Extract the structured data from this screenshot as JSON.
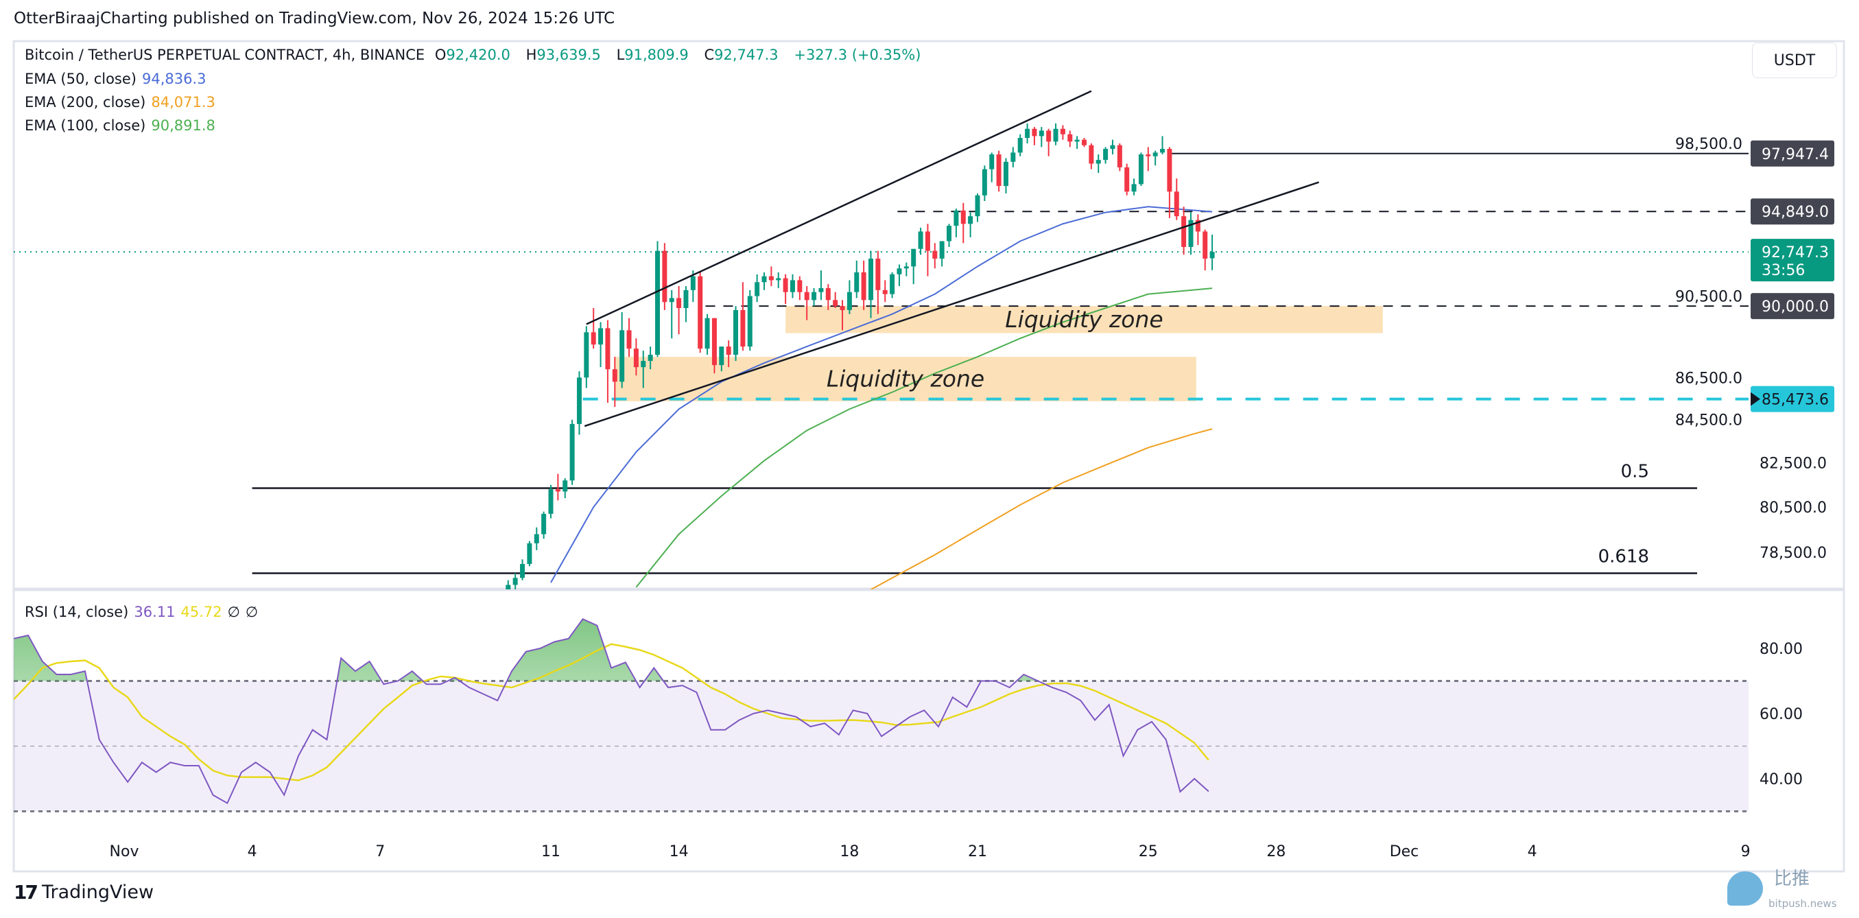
{
  "header": {
    "published": "OtterBiraajCharting published on TradingView.com, Nov 26, 2024 15:26 UTC"
  },
  "legend": {
    "symbol": "Bitcoin / TetherUS PERPETUAL CONTRACT, 4h, BINANCE",
    "o_label": "O",
    "o": "92,420.0",
    "h_label": "H",
    "h": "93,639.5",
    "l_label": "L",
    "l": "91,809.9",
    "c_label": "C",
    "c": "92,747.3",
    "change": "+327.3 (+0.35%)",
    "ema50_label": "EMA (50, close)",
    "ema50": "94,836.3",
    "ema200_label": "EMA (200, close)",
    "ema200": "84,071.3",
    "ema100_label": "EMA (100, close)",
    "ema100": "90,891.8",
    "rsi_label": "RSI (14, close)",
    "rsi": "36.11",
    "rsi_ma": "45.72",
    "rsi_extra1": "∅",
    "rsi_extra2": "∅"
  },
  "currency_button": "USDT",
  "colors": {
    "up": "#089981",
    "down": "#f23645",
    "ema50": "#4a6bd6",
    "ema100": "#4caf50",
    "ema200": "#f0a020",
    "rsi": "#7e57c2",
    "rsi_ma": "#e8d81a",
    "zone": "#fbd9a6",
    "cyan": "#26c6da"
  },
  "chart_data": [
    {
      "type": "candlestick",
      "interval": "4h",
      "scale": "log",
      "ylim": [
        76900,
        100600
      ],
      "y_ticks": [
        "98,500.0",
        "90,500.0",
        "86,500.0",
        "84,500.0",
        "82,500.0",
        "80,500.0",
        "78,500.0"
      ],
      "y_tick_values": [
        98500,
        90500,
        86500,
        84500,
        82500,
        80500,
        78500
      ],
      "x_ticks": [
        {
          "label": "Nov",
          "date": "2024-11-01"
        },
        {
          "label": "4",
          "date": "2024-11-04"
        },
        {
          "label": "7",
          "date": "2024-11-07"
        },
        {
          "label": "11",
          "date": "2024-11-11"
        },
        {
          "label": "14",
          "date": "2024-11-14"
        },
        {
          "label": "18",
          "date": "2024-11-18"
        },
        {
          "label": "21",
          "date": "2024-11-21"
        },
        {
          "label": "25",
          "date": "2024-11-25"
        },
        {
          "label": "28",
          "date": "2024-11-28"
        },
        {
          "label": "Dec",
          "date": "2024-12-01"
        },
        {
          "label": "4",
          "date": "2024-12-04"
        },
        {
          "label": "9",
          "date": "2024-12-09"
        }
      ],
      "candles_first": "2024-11-09T12:00",
      "candles_ohlc": [
        [
          76300,
          76700,
          76100,
          76500
        ],
        [
          76500,
          76800,
          76200,
          76600
        ],
        [
          76600,
          76900,
          76400,
          76700
        ],
        [
          76700,
          77300,
          76500,
          77100
        ],
        [
          77100,
          77600,
          76900,
          77400
        ],
        [
          77400,
          78200,
          77300,
          78000
        ],
        [
          78000,
          79000,
          77900,
          78900
        ],
        [
          78900,
          79600,
          78600,
          79300
        ],
        [
          79300,
          80300,
          79100,
          80200
        ],
        [
          80200,
          81500,
          80000,
          81300
        ],
        [
          81300,
          82000,
          80800,
          81200
        ],
        [
          81200,
          81800,
          80900,
          81700
        ],
        [
          81700,
          84500,
          81500,
          84300
        ],
        [
          84300,
          86800,
          83800,
          86500
        ],
        [
          86500,
          89000,
          86000,
          88700
        ],
        [
          88700,
          89900,
          87900,
          88100
        ],
        [
          88100,
          89200,
          87000,
          88900
        ],
        [
          88900,
          89300,
          85300,
          86900
        ],
        [
          86900,
          87500,
          85100,
          86300
        ],
        [
          86300,
          89700,
          86000,
          88800
        ],
        [
          88800,
          89400,
          87500,
          87900
        ],
        [
          87900,
          88400,
          86600,
          87000
        ],
        [
          87000,
          87800,
          86000,
          87300
        ],
        [
          87300,
          88000,
          86900,
          87600
        ],
        [
          87600,
          93300,
          87500,
          92800
        ],
        [
          92800,
          93200,
          89800,
          90200
        ],
        [
          90200,
          90800,
          88400,
          90400
        ],
        [
          90400,
          91000,
          88600,
          89900
        ],
        [
          89900,
          91000,
          89200,
          90800
        ],
        [
          90800,
          91800,
          90200,
          91500
        ],
        [
          91500,
          91700,
          87700,
          87900
        ],
        [
          87900,
          89600,
          87600,
          89400
        ],
        [
          89400,
          89400,
          86700,
          87100
        ],
        [
          87100,
          88000,
          86800,
          88000
        ],
        [
          88000,
          88300,
          87000,
          87600
        ],
        [
          87600,
          90000,
          87300,
          89800
        ],
        [
          89800,
          91200,
          87800,
          88000
        ],
        [
          88000,
          90800,
          87800,
          90500
        ],
        [
          90500,
          91600,
          90200,
          91200
        ],
        [
          91200,
          91700,
          90800,
          91500
        ],
        [
          91500,
          92000,
          91000,
          91300
        ],
        [
          91300,
          91700,
          90900,
          91400
        ],
        [
          91400,
          91600,
          90100,
          90700
        ],
        [
          90700,
          91600,
          90400,
          91300
        ],
        [
          91300,
          91500,
          90300,
          90700
        ],
        [
          90700,
          91000,
          89300,
          90300
        ],
        [
          90300,
          90900,
          90000,
          90700
        ],
        [
          90700,
          91800,
          90300,
          90900
        ],
        [
          90900,
          91100,
          89800,
          90300
        ],
        [
          90300,
          90700,
          89900,
          90000
        ],
        [
          90000,
          90300,
          88800,
          89800
        ],
        [
          89800,
          91300,
          89600,
          90700
        ],
        [
          90700,
          92300,
          90400,
          91700
        ],
        [
          91700,
          92300,
          89800,
          90300
        ],
        [
          90300,
          92800,
          89400,
          92400
        ],
        [
          92400,
          92800,
          89600,
          90800
        ],
        [
          90800,
          91300,
          90200,
          90600
        ],
        [
          90600,
          91700,
          90400,
          91600
        ],
        [
          91600,
          92100,
          91000,
          91900
        ],
        [
          91900,
          92200,
          91500,
          92000
        ],
        [
          92000,
          92900,
          91100,
          92900
        ],
        [
          92900,
          94000,
          92600,
          93800
        ],
        [
          93800,
          94200,
          91500,
          92800
        ],
        [
          92800,
          93200,
          91900,
          92400
        ],
        [
          92400,
          93300,
          92000,
          93300
        ],
        [
          93300,
          94200,
          93000,
          94100
        ],
        [
          94100,
          95000,
          93500,
          94900
        ],
        [
          94900,
          95300,
          93200,
          94200
        ],
        [
          94200,
          94800,
          93500,
          94600
        ],
        [
          94600,
          95800,
          94300,
          95700
        ],
        [
          95700,
          97300,
          95400,
          97100
        ],
        [
          97100,
          98000,
          96400,
          97900
        ],
        [
          97900,
          98100,
          95900,
          96200
        ],
        [
          96200,
          97700,
          95800,
          97500
        ],
        [
          97500,
          98300,
          97200,
          98000
        ],
        [
          98000,
          99000,
          97800,
          98800
        ],
        [
          98800,
          99600,
          98500,
          99300
        ],
        [
          99300,
          99400,
          98400,
          98900
        ],
        [
          98900,
          99400,
          98300,
          99200
        ],
        [
          99200,
          99300,
          97800,
          98600
        ],
        [
          98600,
          99600,
          98400,
          99300
        ],
        [
          99300,
          99500,
          98700,
          99000
        ],
        [
          99000,
          99200,
          98300,
          98600
        ],
        [
          98600,
          98900,
          98200,
          98700
        ],
        [
          98700,
          98800,
          98300,
          98400
        ],
        [
          98400,
          98500,
          97100,
          97400
        ],
        [
          97400,
          97900,
          96900,
          97600
        ],
        [
          97600,
          98300,
          97400,
          98200
        ],
        [
          98200,
          98700,
          97900,
          98400
        ],
        [
          98400,
          98500,
          97000,
          97200
        ],
        [
          97200,
          97400,
          95700,
          95900
        ],
        [
          95900,
          96600,
          95700,
          96300
        ],
        [
          96300,
          98000,
          96200,
          97900
        ],
        [
          97900,
          98300,
          97000,
          97800
        ],
        [
          97800,
          98100,
          97300,
          98000
        ],
        [
          98000,
          98900,
          97900,
          98200
        ],
        [
          98200,
          98300,
          94500,
          95900
        ],
        [
          95900,
          96600,
          94400,
          94600
        ],
        [
          94600,
          95100,
          92600,
          93000
        ],
        [
          93000,
          94800,
          92600,
          94400
        ],
        [
          94400,
          94700,
          93100,
          93800
        ],
        [
          93800,
          93900,
          91800,
          92400
        ],
        [
          92420,
          93640,
          91810,
          92747
        ]
      ],
      "ema50": [
        [
          "2024-11-11T00:00",
          77200
        ],
        [
          "2024-11-12T00:00",
          80500
        ],
        [
          "2024-11-13T00:00",
          83000
        ],
        [
          "2024-11-14T00:00",
          85000
        ],
        [
          "2024-11-15T00:00",
          86300
        ],
        [
          "2024-11-16T00:00",
          87200
        ],
        [
          "2024-11-17T00:00",
          88000
        ],
        [
          "2024-11-18T00:00",
          88800
        ],
        [
          "2024-11-19T00:00",
          89600
        ],
        [
          "2024-11-20T00:00",
          90600
        ],
        [
          "2024-11-21T00:00",
          92000
        ],
        [
          "2024-11-22T00:00",
          93300
        ],
        [
          "2024-11-23T00:00",
          94200
        ],
        [
          "2024-11-24T00:00",
          94800
        ],
        [
          "2024-11-25T00:00",
          95100
        ],
        [
          "2024-11-26T12:00",
          94836
        ]
      ],
      "ema100": [
        [
          "2024-11-13T00:00",
          77000
        ],
        [
          "2024-11-14T00:00",
          79300
        ],
        [
          "2024-11-15T00:00",
          81000
        ],
        [
          "2024-11-16T00:00",
          82600
        ],
        [
          "2024-11-17T00:00",
          84000
        ],
        [
          "2024-11-18T00:00",
          85000
        ],
        [
          "2024-11-19T00:00",
          85800
        ],
        [
          "2024-11-20T00:00",
          86700
        ],
        [
          "2024-11-21T00:00",
          87500
        ],
        [
          "2024-11-22T00:00",
          88400
        ],
        [
          "2024-11-23T00:00",
          89200
        ],
        [
          "2024-11-24T00:00",
          89900
        ],
        [
          "2024-11-25T00:00",
          90600
        ],
        [
          "2024-11-26T12:00",
          90892
        ]
      ],
      "ema200": [
        [
          "2024-11-18T12:00",
          76900
        ],
        [
          "2024-11-20T00:00",
          78400
        ],
        [
          "2024-11-21T00:00",
          79500
        ],
        [
          "2024-11-22T00:00",
          80600
        ],
        [
          "2024-11-23T00:00",
          81600
        ],
        [
          "2024-11-24T00:00",
          82400
        ],
        [
          "2024-11-25T00:00",
          83200
        ],
        [
          "2024-11-26T00:00",
          83800
        ],
        [
          "2024-11-26T12:00",
          84071
        ]
      ],
      "price_labels": [
        {
          "value": 97947.4,
          "text": "97,947.4",
          "style": "dark"
        },
        {
          "value": 94849.0,
          "text": "94,849.0",
          "style": "dark"
        },
        {
          "value": 92747.3,
          "text": "92,747.3",
          "countdown": "33:56",
          "style": "green"
        },
        {
          "value": 90000.0,
          "text": "90,000.0",
          "style": "dark"
        },
        {
          "value": 85473.6,
          "text": "85,473.6",
          "style": "cyan"
        }
      ],
      "annotations": {
        "liquidity_zones": [
          {
            "text": "Liquidity zone",
            "from": "2024-11-16T12:00",
            "to": "2024-11-30T12:00",
            "high": 90000,
            "low": 88660
          },
          {
            "text": "Liquidity zone",
            "from": "2024-11-12T12:00",
            "to": "2024-11-26T03:00",
            "high": 87500,
            "low": 85370
          }
        ],
        "hlines": [
          {
            "value": 97947.4,
            "from": "2024-11-25T12:00",
            "style": "solid"
          },
          {
            "value": 94849.0,
            "from": "2024-11-19T03:00",
            "style": "dashed"
          },
          {
            "value": 90000.0,
            "from": "2024-11-14T15:00",
            "style": "dashed"
          },
          {
            "value": 85473.6,
            "from": "2024-11-11T18:00",
            "style": "cyan-dashed"
          }
        ],
        "channel": [
          {
            "from": [
              "2024-11-11T20:00",
              89100
            ],
            "to": [
              "2024-11-23T16:00",
              101400
            ]
          },
          {
            "from": [
              "2024-11-11T19:00",
              84200
            ],
            "to": [
              "2024-11-29T00:00",
              96400
            ]
          }
        ],
        "fib_levels": [
          {
            "label": "0.5",
            "value": 81350,
            "from": "2024-11-04T00:00"
          },
          {
            "label": "0.618",
            "value": 77600,
            "from": "2024-11-04T00:00"
          }
        ]
      }
    },
    {
      "type": "line",
      "title": "RSI (14, close)",
      "ylim": [
        25,
        95
      ],
      "y_ticks": [
        "80.00",
        "60.00",
        "40.00"
      ],
      "y_tick_values": [
        80,
        60,
        40
      ],
      "bands": [
        70,
        50,
        30
      ],
      "first": "2024-10-29T10:00",
      "step_hours": 8,
      "rsi": [
        83,
        84,
        76,
        72,
        72,
        73,
        52,
        45,
        39,
        45,
        42,
        45,
        44,
        44,
        35,
        32.5,
        42,
        45,
        42,
        35,
        47,
        55,
        52,
        77,
        73,
        76,
        69,
        70,
        73,
        69,
        69,
        71,
        68,
        66,
        64,
        73,
        79,
        80,
        82,
        83,
        89,
        87,
        74,
        75.7,
        68,
        74,
        68,
        68.6,
        66.5,
        55,
        55,
        58,
        60,
        61,
        60,
        59,
        56,
        57,
        53.5,
        61,
        60,
        53,
        56,
        59,
        61,
        56,
        65,
        62,
        70,
        70,
        68,
        72,
        70,
        68,
        66.5,
        64,
        58,
        62.7,
        47,
        55,
        57.5,
        52,
        36,
        40,
        36.11
      ],
      "rsi_ma": [
        64.4,
        69,
        74,
        75.5,
        76,
        76.3,
        74,
        68,
        65,
        59,
        56,
        53,
        50.5,
        46,
        42.5,
        41,
        40.5,
        40.5,
        40.5,
        40,
        39.5,
        41,
        43.5,
        48,
        52.5,
        57,
        61.5,
        65,
        68.6,
        70.2,
        71.4,
        71,
        70,
        69.2,
        68.6,
        68,
        69.5,
        71,
        73,
        74.8,
        77,
        79.3,
        81.3,
        80.5,
        79.5,
        78,
        76,
        74,
        71,
        68,
        66,
        63.5,
        61.5,
        60,
        58.6,
        58.2,
        57.8,
        57.8,
        57.9,
        58,
        57.7,
        57.3,
        56.5,
        56.6,
        57,
        57.4,
        59,
        60.5,
        62,
        64,
        66,
        67.5,
        68.6,
        69.2,
        69.3,
        68.5,
        67,
        65,
        63,
        61,
        59,
        57,
        54,
        51,
        45.72
      ]
    }
  ],
  "footer": {
    "brand": "TradingView",
    "watermark_cn": "比推",
    "watermark_en": "bitpush.news"
  }
}
